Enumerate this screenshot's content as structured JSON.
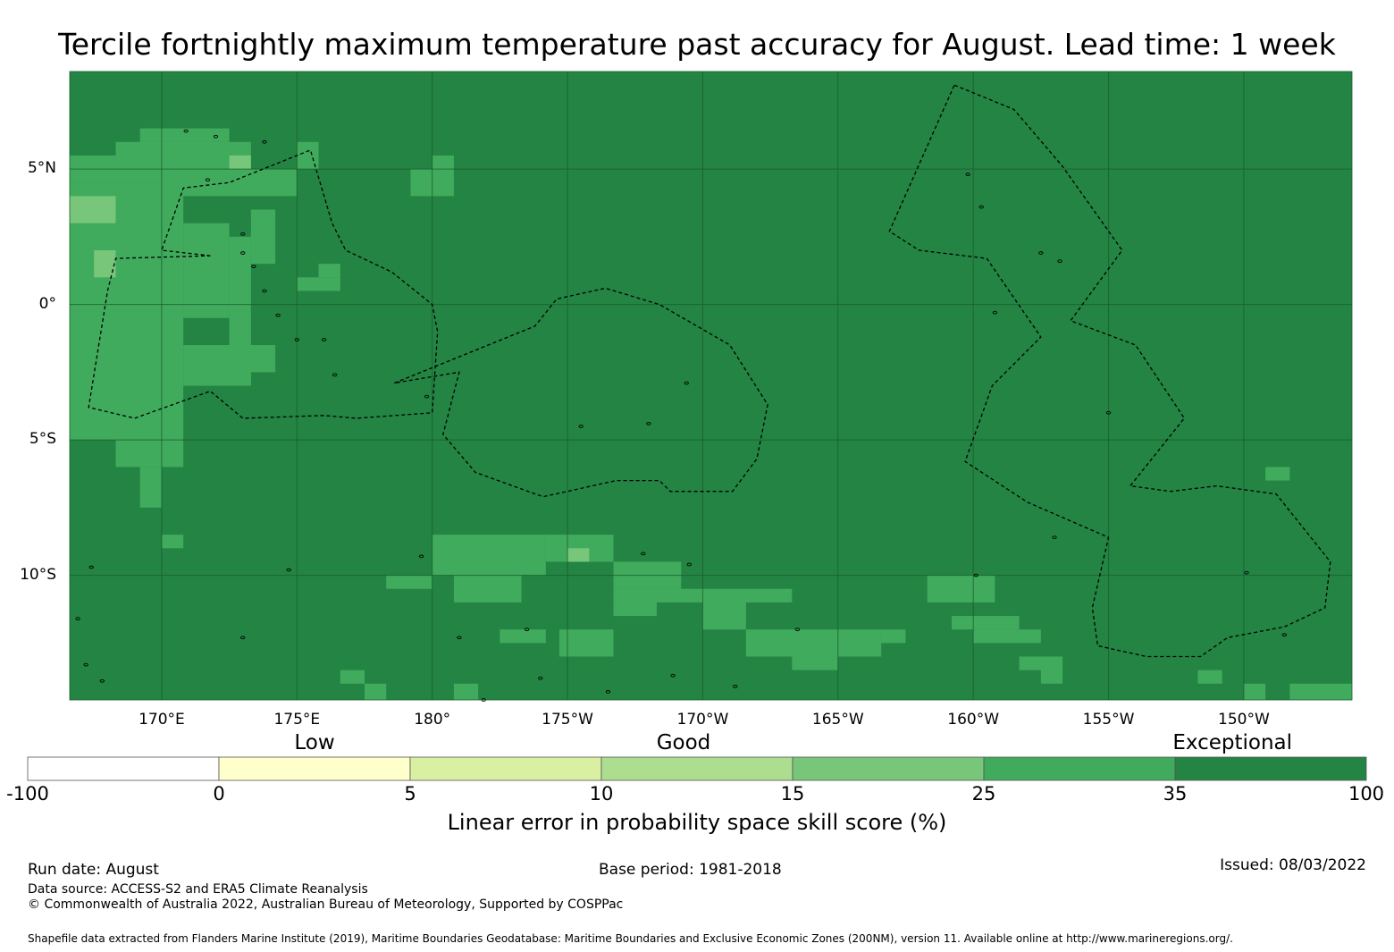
{
  "title": "Tercile fortnightly maximum temperature past accuracy for August. Lead time: 1 week",
  "map": {
    "lat_labels": [
      {
        "label": "5°N",
        "lat": 5
      },
      {
        "label": "0°",
        "lat": 0
      },
      {
        "label": "5°S",
        "lat": -5
      },
      {
        "label": "10°S",
        "lat": -10
      }
    ],
    "lon_labels": [
      {
        "label": "170°E",
        "lon": 170
      },
      {
        "label": "175°E",
        "lon": 175
      },
      {
        "label": "180°",
        "lon": 180
      },
      {
        "label": "175°W",
        "lon": 185
      },
      {
        "label": "170°W",
        "lon": 190
      },
      {
        "label": "165°W",
        "lon": 195
      },
      {
        "label": "160°W",
        "lon": 200
      },
      {
        "label": "155°W",
        "lon": 205
      },
      {
        "label": "150°W",
        "lon": 210
      }
    ],
    "extent": {
      "lon_min": 166.6,
      "lon_max": 214.0,
      "lat_min": -14.6,
      "lat_max": 8.6
    },
    "background_color": "#238443",
    "patch_colors": {
      "c25": "#41ab5d",
      "c15": "#78c679"
    },
    "grid_color": "#1a5e30",
    "patches_25_35": [
      [
        166.6,
        168.3,
        4.5,
        5.5
      ],
      [
        168.3,
        173.3,
        4.5,
        6.0
      ],
      [
        169.2,
        172.5,
        6.0,
        6.5
      ],
      [
        170.0,
        175.0,
        4.0,
        5.0
      ],
      [
        175.0,
        175.8,
        5.0,
        6.0
      ],
      [
        166.6,
        170.8,
        -5.0,
        4.5
      ],
      [
        170.8,
        172.5,
        -0.5,
        3.0
      ],
      [
        172.5,
        173.3,
        -3.0,
        2.5
      ],
      [
        173.3,
        174.2,
        1.5,
        3.5
      ],
      [
        175.0,
        176.6,
        0.5,
        1.0
      ],
      [
        175.8,
        176.6,
        1.0,
        1.5
      ],
      [
        170.8,
        173.3,
        -3.0,
        -1.5
      ],
      [
        172.5,
        174.2,
        -2.5,
        -1.5
      ],
      [
        168.3,
        170.8,
        -6.0,
        -5.0
      ],
      [
        169.2,
        170.0,
        -7.5,
        -6.0
      ],
      [
        170.0,
        170.8,
        -9.0,
        -8.5
      ],
      [
        179.2,
        180.8,
        4.0,
        5.0
      ],
      [
        180.0,
        180.8,
        5.0,
        5.5
      ],
      [
        180.0,
        184.2,
        -10.0,
        -8.5
      ],
      [
        184.2,
        186.7,
        -9.5,
        -8.5
      ],
      [
        186.7,
        189.2,
        -10.5,
        -9.5
      ],
      [
        178.3,
        180.0,
        -10.5,
        -10.0
      ],
      [
        180.8,
        183.3,
        -11.0,
        -10.0
      ],
      [
        186.7,
        193.3,
        -11.0,
        -10.5
      ],
      [
        186.7,
        188.3,
        -11.5,
        -11.0
      ],
      [
        190.0,
        191.6,
        -12.0,
        -11.0
      ],
      [
        182.5,
        184.2,
        -12.5,
        -12.0
      ],
      [
        184.7,
        186.7,
        -13.0,
        -12.0
      ],
      [
        191.6,
        196.6,
        -13.0,
        -12.0
      ],
      [
        198.3,
        200.8,
        -11.0,
        -10.0
      ],
      [
        199.2,
        201.7,
        -12.0,
        -11.5
      ],
      [
        200.0,
        202.5,
        -12.5,
        -12.0
      ],
      [
        208.3,
        209.2,
        -14.0,
        -13.5
      ],
      [
        210.0,
        210.8,
        -14.6,
        -14.0
      ],
      [
        211.7,
        214.0,
        -14.6,
        -14.0
      ],
      [
        196.6,
        197.5,
        -12.5,
        -12.0
      ],
      [
        210.8,
        211.7,
        -6.5,
        -6.0
      ],
      [
        193.3,
        195.0,
        -13.5,
        -13.0
      ],
      [
        201.7,
        203.3,
        -13.5,
        -13.0
      ],
      [
        202.5,
        203.3,
        -14.0,
        -13.0
      ],
      [
        176.6,
        177.5,
        -14.0,
        -13.5
      ],
      [
        177.5,
        178.3,
        -14.6,
        -14.0
      ],
      [
        180.8,
        181.7,
        -14.6,
        -14.0
      ]
    ],
    "patches_15_25": [
      [
        166.6,
        168.3,
        3.0,
        4.0
      ],
      [
        167.5,
        168.3,
        1.0,
        2.0
      ],
      [
        172.5,
        173.3,
        5.0,
        5.5
      ],
      [
        185.0,
        185.8,
        -9.5,
        -9.0
      ]
    ],
    "eez_regions": [
      {
        "name": "west",
        "points": [
          [
            171.8,
            1.8
          ],
          [
            170.0,
            2.0
          ],
          [
            170.8,
            4.3
          ],
          [
            172.5,
            4.5
          ],
          [
            175.5,
            5.7
          ],
          [
            176.3,
            3.0
          ],
          [
            176.8,
            2.0
          ],
          [
            178.5,
            1.2
          ],
          [
            180.0,
            0.0
          ],
          [
            180.2,
            -1.0
          ],
          [
            180.0,
            -4.0
          ],
          [
            177.2,
            -4.2
          ],
          [
            176.0,
            -4.1
          ],
          [
            173.0,
            -4.2
          ],
          [
            171.8,
            -3.2
          ],
          [
            169.0,
            -4.2
          ],
          [
            167.3,
            -3.8
          ],
          [
            168.0,
            0.5
          ],
          [
            168.3,
            1.7
          ]
        ]
      },
      {
        "name": "center",
        "points": [
          [
            178.6,
            -2.9
          ],
          [
            183.8,
            -0.8
          ],
          [
            184.6,
            0.2
          ],
          [
            186.4,
            0.6
          ],
          [
            188.4,
            0.0
          ],
          [
            191.0,
            -1.5
          ],
          [
            192.4,
            -3.7
          ],
          [
            192.0,
            -5.7
          ],
          [
            191.1,
            -6.9
          ],
          [
            188.8,
            -6.9
          ],
          [
            188.4,
            -6.5
          ],
          [
            186.8,
            -6.5
          ],
          [
            184.1,
            -7.1
          ],
          [
            181.6,
            -6.2
          ],
          [
            180.4,
            -4.8
          ],
          [
            181.0,
            -2.5
          ]
        ]
      },
      {
        "name": "east",
        "points": [
          [
            199.3,
            8.1
          ],
          [
            201.5,
            7.2
          ],
          [
            203.3,
            5.1
          ],
          [
            205.5,
            2.0
          ],
          [
            203.6,
            -0.6
          ],
          [
            206.0,
            -1.5
          ],
          [
            207.8,
            -4.2
          ],
          [
            205.8,
            -6.7
          ],
          [
            207.3,
            -6.9
          ],
          [
            209.0,
            -6.7
          ],
          [
            211.2,
            -7.0
          ],
          [
            213.2,
            -9.5
          ],
          [
            213.0,
            -11.2
          ],
          [
            211.5,
            -11.9
          ],
          [
            209.4,
            -12.3
          ],
          [
            208.4,
            -13.0
          ],
          [
            206.4,
            -13.0
          ],
          [
            204.6,
            -12.6
          ],
          [
            204.4,
            -11.2
          ],
          [
            205.0,
            -8.6
          ],
          [
            202.0,
            -7.3
          ],
          [
            199.7,
            -5.8
          ],
          [
            200.7,
            -3.0
          ],
          [
            202.5,
            -1.2
          ],
          [
            200.5,
            1.7
          ],
          [
            198.0,
            2.0
          ],
          [
            196.9,
            2.7
          ]
        ]
      }
    ],
    "islands": [
      [
        171.7,
        4.6
      ],
      [
        173.0,
        1.9
      ],
      [
        173.4,
        1.4
      ],
      [
        173.0,
        2.6
      ],
      [
        173.8,
        0.5
      ],
      [
        174.3,
        -0.4
      ],
      [
        175.0,
        -1.3
      ],
      [
        176.0,
        -1.3
      ],
      [
        176.4,
        -2.6
      ],
      [
        179.8,
        -3.4
      ],
      [
        199.8,
        4.8
      ],
      [
        200.3,
        3.6
      ],
      [
        202.5,
        1.9
      ],
      [
        203.2,
        1.6
      ],
      [
        189.4,
        -2.9
      ],
      [
        185.5,
        -4.5
      ],
      [
        188.0,
        -4.4
      ],
      [
        200.8,
        -0.3
      ],
      [
        205.0,
        -4.0
      ],
      [
        210.1,
        -9.9
      ],
      [
        203.0,
        -8.6
      ],
      [
        188.9,
        -13.7
      ],
      [
        191.2,
        -14.1
      ],
      [
        186.5,
        -14.3
      ],
      [
        184.0,
        -13.8
      ],
      [
        173.0,
        -12.3
      ],
      [
        167.4,
        -9.7
      ],
      [
        166.9,
        -11.6
      ],
      [
        167.2,
        -13.3
      ],
      [
        167.8,
        -13.9
      ],
      [
        174.7,
        -9.8
      ],
      [
        179.6,
        -9.3
      ],
      [
        181.0,
        -12.3
      ],
      [
        183.5,
        -12.0
      ],
      [
        187.8,
        -9.2
      ],
      [
        189.5,
        -9.6
      ],
      [
        193.5,
        -12.0
      ],
      [
        211.5,
        -12.2
      ],
      [
        200.1,
        -10.0
      ],
      [
        181.9,
        -14.6
      ],
      [
        170.9,
        6.4
      ],
      [
        172.0,
        6.2
      ],
      [
        173.8,
        6.0
      ]
    ]
  },
  "colorbar": {
    "category_labels": [
      {
        "label": "Low",
        "pos": 1.5
      },
      {
        "label": "Good",
        "pos": 3.43
      },
      {
        "label": "Exceptional",
        "pos": 6.3
      }
    ],
    "bins": [
      {
        "from": "-100",
        "to": "0",
        "color": "#ffffff"
      },
      {
        "from": "0",
        "to": "5",
        "color": "#ffffcc"
      },
      {
        "from": "5",
        "to": "10",
        "color": "#d9f0a3"
      },
      {
        "from": "10",
        "to": "15",
        "color": "#addd8e"
      },
      {
        "from": "15",
        "to": "25",
        "color": "#78c679"
      },
      {
        "from": "25",
        "to": "35",
        "color": "#41ab5d"
      },
      {
        "from": "35",
        "to": "100",
        "color": "#238443"
      }
    ],
    "ticks": [
      "-100",
      "0",
      "5",
      "10",
      "15",
      "25",
      "35",
      "100"
    ],
    "title": "Linear error in probability space skill score (%)"
  },
  "footer": {
    "run_date": "Run date: August",
    "base_period": "Base period: 1981-2018",
    "issued": "Issued: 08/03/2022",
    "data_source": "Data source: ACCESS-S2 and ERA5 Climate Reanalysis",
    "copyright": "© Commonwealth of Australia 2022, Australian Bureau of Meteorology, Supported by COSPPac",
    "shapefile_note": "Shapefile data extracted from Flanders Marine Institute (2019), Maritime Boundaries Geodatabase: Maritime Boundaries and Exclusive Economic Zones (200NM), version 11. Available online at http://www.marineregions.org/."
  }
}
